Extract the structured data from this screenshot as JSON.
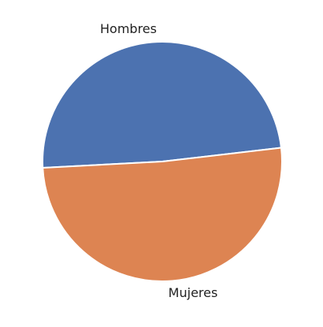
{
  "chart_data": {
    "type": "pie",
    "categories": [
      "Hombres",
      "Mujeres"
    ],
    "values": [
      49,
      51
    ],
    "colors": [
      "#4c72b0",
      "#dd8452"
    ],
    "title": "",
    "legend": "none"
  }
}
